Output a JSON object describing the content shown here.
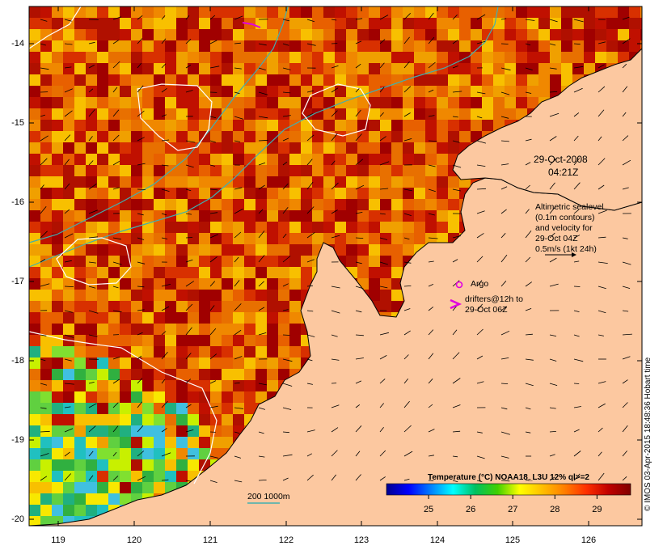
{
  "map": {
    "x_ticks": [
      "119",
      "120",
      "121",
      "122",
      "123",
      "124",
      "125",
      "126"
    ],
    "y_ticks": [
      "-14",
      "-15",
      "-16",
      "-17",
      "-18",
      "-19",
      "-20"
    ],
    "date_line1": "29-Oct-2008",
    "date_line2": "04:21Z",
    "altimetry_lines": [
      "Altimetric sealevel",
      "(0.1m contours)",
      "and velocity for",
      "29-Oct 04Z",
      "0.5m/s (1kt 24h)"
    ],
    "argo_label": "Argo",
    "drifter_lines": [
      "drifters@12h to",
      "29-Oct 06Z"
    ],
    "isobath_label": "200  1000m",
    "credit": "© IMOS 03-Apr-2015 18:48:36 Hobart time",
    "colorbar": {
      "title": "Temperature (°C) NOAA18_L3U 12% ql>=2",
      "ticks": [
        "25",
        "26",
        "27",
        "28",
        "29"
      ],
      "range": [
        24.0,
        29.8
      ],
      "colormap": [
        "#00008f",
        "#0000ff",
        "#0080ff",
        "#00ffff",
        "#00c060",
        "#40d000",
        "#ffff00",
        "#ffc000",
        "#ff8000",
        "#ff3000",
        "#c00000",
        "#800000"
      ]
    },
    "colors": {
      "land": "#fcc8a0",
      "coast": "#000000",
      "isobath": "#40b0b0",
      "contour": "#ffffff",
      "marker": "#e000e0"
    }
  }
}
